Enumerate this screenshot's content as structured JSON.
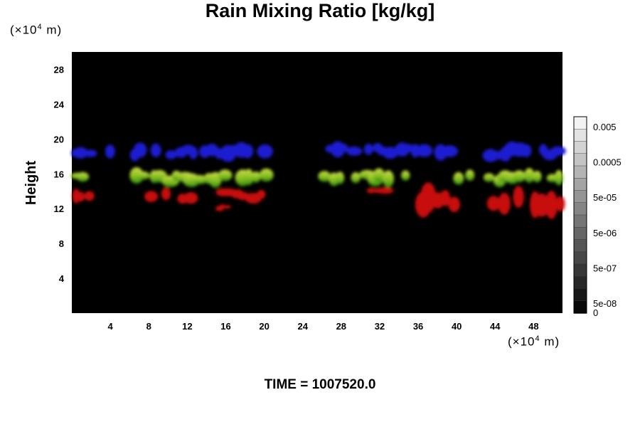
{
  "title": "Rain Mixing Ratio [kg/kg]",
  "y_unit": {
    "prefix": "(×10",
    "exp": "4",
    "suffix": " m)"
  },
  "x_unit": {
    "prefix": "(×10",
    "exp": "4",
    "suffix": " m)"
  },
  "time_label": "TIME = 1007520.0",
  "colors": {
    "plot_bg": "#000000",
    "blue": "#1a1ad0",
    "green": "#7fbf1f",
    "lime": "#b4d23a",
    "red": "#c80c0c"
  },
  "chart_data": {
    "type": "heatmap",
    "title": "Rain Mixing Ratio [kg/kg]",
    "xlabel": "",
    "ylabel": "Height",
    "x_ticks": [
      "4",
      "8",
      "12",
      "16",
      "20",
      "24",
      "28",
      "32",
      "36",
      "40",
      "44",
      "48"
    ],
    "y_ticks": [
      "4",
      "8",
      "12",
      "16",
      "20",
      "24",
      "28"
    ],
    "xlim": [
      0,
      51
    ],
    "ylim": [
      0,
      30
    ],
    "colorbar": {
      "tick_labels": [
        "0.005",
        "0.0005",
        "5e-05",
        "5e-06",
        "5e-07",
        "5e-08",
        "0"
      ],
      "levels": 16
    },
    "regions": [
      {
        "color": "blue",
        "x": [
          0.0,
          2.2
        ],
        "y": [
          17.5,
          19.2
        ]
      },
      {
        "color": "blue",
        "x": [
          3.5,
          20.5
        ],
        "y": [
          17.5,
          19.6
        ]
      },
      {
        "color": "blue",
        "x": [
          25.5,
          39.5
        ],
        "y": [
          17.6,
          19.6
        ]
      },
      {
        "color": "blue",
        "x": [
          43.0,
          51.0
        ],
        "y": [
          17.5,
          19.5
        ]
      },
      {
        "color": "green",
        "x": [
          0.0,
          2.5
        ],
        "y": [
          14.8,
          16.3
        ]
      },
      {
        "color": "green",
        "x": [
          5.5,
          20.5
        ],
        "y": [
          14.5,
          16.5
        ]
      },
      {
        "color": "green",
        "x": [
          26.0,
          35.0
        ],
        "y": [
          14.5,
          16.5
        ]
      },
      {
        "color": "green",
        "x": [
          40.0,
          51.0
        ],
        "y": [
          14.5,
          16.5
        ]
      },
      {
        "color": "red",
        "x": [
          0.0,
          2.0
        ],
        "y": [
          12.8,
          14.5
        ]
      },
      {
        "color": "red",
        "x": [
          7.0,
          20.0
        ],
        "y": [
          12.5,
          14.5
        ]
      },
      {
        "color": "red",
        "x": [
          15.0,
          16.5
        ],
        "y": [
          11.8,
          12.5
        ]
      },
      {
        "color": "red",
        "x": [
          30.5,
          33.0
        ],
        "y": [
          13.5,
          14.5
        ]
      },
      {
        "color": "red",
        "x": [
          36.0,
          51.0
        ],
        "y": [
          11.0,
          14.5
        ]
      }
    ]
  }
}
